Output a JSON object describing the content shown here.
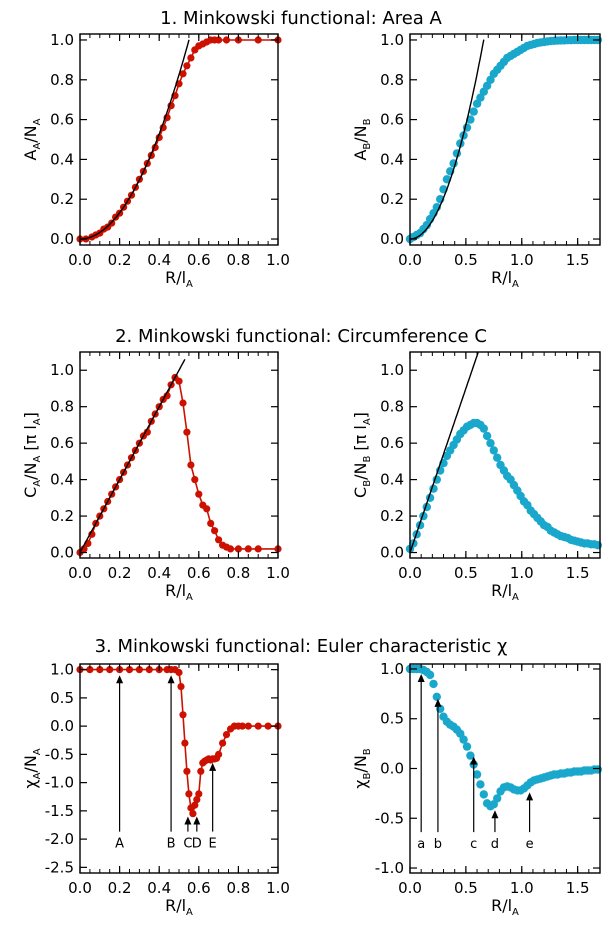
{
  "colors": {
    "red": "#cc1100",
    "cyan": "#1aa7cc",
    "axis": "#000000",
    "fit": "#000000"
  },
  "chart_data": [
    {
      "type": "scatter",
      "row": 0,
      "col": 0,
      "connected": true,
      "title": "1. Minkowski functional: Area A",
      "ylabel": {
        "main": "A",
        "sub1": "A",
        "mid": "/N",
        "sub2": "A",
        "suffix": ""
      },
      "xlabel": {
        "main": "R/l",
        "sub": "A"
      },
      "xlim": [
        0,
        1.0
      ],
      "ylim": [
        -0.03,
        1.03
      ],
      "xticks": [
        "0.0",
        "0.2",
        "0.4",
        "0.6",
        "0.8",
        "1.0"
      ],
      "yticks": [
        "0.0",
        "0.2",
        "0.4",
        "0.6",
        "0.8",
        "1.0"
      ],
      "color": "#cc1100",
      "fit_curve": {
        "kind": "quadratic",
        "coef": 3.3,
        "xmax": 0.56
      },
      "x": [
        0.0,
        0.03,
        0.06,
        0.08,
        0.1,
        0.12,
        0.14,
        0.16,
        0.18,
        0.2,
        0.22,
        0.24,
        0.26,
        0.28,
        0.3,
        0.32,
        0.34,
        0.36,
        0.38,
        0.4,
        0.42,
        0.44,
        0.46,
        0.48,
        0.5,
        0.52,
        0.54,
        0.56,
        0.58,
        0.6,
        0.62,
        0.64,
        0.66,
        0.68,
        0.7,
        0.74,
        0.8,
        0.9,
        1.0
      ],
      "y": [
        0.0,
        0.0,
        0.01,
        0.02,
        0.03,
        0.05,
        0.06,
        0.08,
        0.11,
        0.13,
        0.16,
        0.19,
        0.22,
        0.26,
        0.3,
        0.34,
        0.38,
        0.42,
        0.46,
        0.51,
        0.56,
        0.61,
        0.67,
        0.72,
        0.78,
        0.83,
        0.87,
        0.91,
        0.95,
        0.97,
        0.98,
        0.99,
        1.0,
        1.0,
        1.0,
        1.0,
        1.0,
        1.0,
        1.0
      ]
    },
    {
      "type": "scatter",
      "row": 0,
      "col": 1,
      "connected": false,
      "ylabel": {
        "main": "A",
        "sub1": "B",
        "mid": "/N",
        "sub2": "B",
        "suffix": ""
      },
      "xlabel": {
        "main": "R/l",
        "sub": "A"
      },
      "xlim": [
        0,
        1.7
      ],
      "ylim": [
        -0.03,
        1.03
      ],
      "xticks": [
        "0.0",
        "0.5",
        "1.0",
        "1.5"
      ],
      "xtick_values": [
        0,
        0.5,
        1.0,
        1.5
      ],
      "yticks": [
        "0.0",
        "0.2",
        "0.4",
        "0.6",
        "0.8",
        "1.0"
      ],
      "color": "#1aa7cc",
      "fit_curve": {
        "kind": "quadratic",
        "coef": 2.3,
        "xmax": 0.66
      },
      "x": [
        0.0,
        0.03,
        0.06,
        0.09,
        0.12,
        0.15,
        0.18,
        0.21,
        0.24,
        0.27,
        0.3,
        0.33,
        0.36,
        0.39,
        0.42,
        0.45,
        0.48,
        0.51,
        0.54,
        0.57,
        0.6,
        0.63,
        0.66,
        0.69,
        0.72,
        0.75,
        0.78,
        0.81,
        0.84,
        0.87,
        0.9,
        0.93,
        0.96,
        0.99,
        1.02,
        1.05,
        1.08,
        1.11,
        1.14,
        1.17,
        1.2,
        1.23,
        1.26,
        1.29,
        1.32,
        1.35,
        1.38,
        1.41,
        1.44,
        1.47,
        1.5,
        1.53,
        1.56,
        1.59,
        1.62,
        1.65,
        1.68
      ],
      "y": [
        0.0,
        0.01,
        0.02,
        0.03,
        0.05,
        0.07,
        0.1,
        0.13,
        0.16,
        0.2,
        0.25,
        0.3,
        0.34,
        0.38,
        0.43,
        0.48,
        0.52,
        0.56,
        0.6,
        0.64,
        0.68,
        0.71,
        0.74,
        0.77,
        0.8,
        0.83,
        0.85,
        0.87,
        0.89,
        0.91,
        0.92,
        0.93,
        0.94,
        0.95,
        0.96,
        0.97,
        0.975,
        0.98,
        0.985,
        0.988,
        0.99,
        0.993,
        0.995,
        0.996,
        0.997,
        0.998,
        0.998,
        0.999,
        0.999,
        1.0,
        1.0,
        1.0,
        1.0,
        1.0,
        1.0,
        1.0,
        1.0
      ]
    },
    {
      "type": "scatter",
      "row": 1,
      "col": 0,
      "connected": true,
      "title": "2. Minkowski functional: Circumference C",
      "ylabel": {
        "main": "C",
        "sub1": "A",
        "mid": "/N",
        "sub2": "A",
        "suffix": " [π l",
        "suffix_sub": "A",
        "suffix_end": "]"
      },
      "xlabel": {
        "main": "R/l",
        "sub": "A"
      },
      "xlim": [
        0,
        1.0
      ],
      "ylim": [
        -0.03,
        1.1
      ],
      "xticks": [
        "0.0",
        "0.2",
        "0.4",
        "0.6",
        "0.8",
        "1.0"
      ],
      "yticks": [
        "0.0",
        "0.2",
        "0.4",
        "0.6",
        "0.8",
        "1.0"
      ],
      "color": "#cc1100",
      "fit_curve": {
        "kind": "linear",
        "coef": 2.0,
        "xmax": 0.53
      },
      "x": [
        0.0,
        0.02,
        0.04,
        0.06,
        0.08,
        0.1,
        0.12,
        0.14,
        0.16,
        0.18,
        0.2,
        0.22,
        0.24,
        0.26,
        0.28,
        0.3,
        0.32,
        0.34,
        0.36,
        0.38,
        0.4,
        0.42,
        0.44,
        0.46,
        0.48,
        0.5,
        0.52,
        0.54,
        0.56,
        0.58,
        0.6,
        0.62,
        0.64,
        0.66,
        0.68,
        0.7,
        0.72,
        0.74,
        0.76,
        0.8,
        0.85,
        0.9,
        1.0
      ],
      "y": [
        0.0,
        0.02,
        0.05,
        0.1,
        0.16,
        0.2,
        0.24,
        0.28,
        0.32,
        0.36,
        0.4,
        0.44,
        0.48,
        0.52,
        0.56,
        0.6,
        0.64,
        0.66,
        0.72,
        0.76,
        0.8,
        0.84,
        0.86,
        0.92,
        0.96,
        0.94,
        0.82,
        0.66,
        0.48,
        0.4,
        0.32,
        0.26,
        0.24,
        0.16,
        0.12,
        0.07,
        0.04,
        0.03,
        0.02,
        0.02,
        0.02,
        0.02,
        0.02
      ]
    },
    {
      "type": "scatter",
      "row": 1,
      "col": 1,
      "connected": false,
      "ylabel": {
        "main": "C",
        "sub1": "B",
        "mid": "/N",
        "sub2": "B",
        "suffix": " [π l",
        "suffix_sub": "A",
        "suffix_end": "]"
      },
      "xlabel": {
        "main": "R/l",
        "sub": "A"
      },
      "xlim": [
        0,
        1.7
      ],
      "ylim": [
        -0.03,
        1.1
      ],
      "xticks": [
        "0.0",
        "0.5",
        "1.0",
        "1.5"
      ],
      "xtick_values": [
        0,
        0.5,
        1.0,
        1.5
      ],
      "yticks": [
        "0.0",
        "0.2",
        "0.4",
        "0.6",
        "0.8",
        "1.0"
      ],
      "color": "#1aa7cc",
      "fit_curve": {
        "kind": "linear",
        "coef": 1.8,
        "xmax": 0.62
      },
      "x": [
        0.0,
        0.03,
        0.06,
        0.09,
        0.12,
        0.15,
        0.18,
        0.21,
        0.24,
        0.27,
        0.3,
        0.33,
        0.36,
        0.39,
        0.42,
        0.45,
        0.48,
        0.51,
        0.54,
        0.57,
        0.6,
        0.63,
        0.66,
        0.69,
        0.72,
        0.75,
        0.78,
        0.81,
        0.84,
        0.87,
        0.9,
        0.93,
        0.96,
        0.99,
        1.02,
        1.05,
        1.08,
        1.11,
        1.14,
        1.17,
        1.2,
        1.23,
        1.26,
        1.29,
        1.32,
        1.35,
        1.38,
        1.41,
        1.44,
        1.47,
        1.5,
        1.53,
        1.56,
        1.59,
        1.62,
        1.65,
        1.68
      ],
      "y": [
        0.02,
        0.05,
        0.1,
        0.15,
        0.2,
        0.25,
        0.3,
        0.35,
        0.4,
        0.45,
        0.49,
        0.53,
        0.56,
        0.59,
        0.62,
        0.65,
        0.67,
        0.69,
        0.7,
        0.71,
        0.71,
        0.7,
        0.68,
        0.64,
        0.6,
        0.56,
        0.52,
        0.48,
        0.45,
        0.42,
        0.4,
        0.37,
        0.34,
        0.31,
        0.28,
        0.26,
        0.23,
        0.21,
        0.19,
        0.17,
        0.15,
        0.14,
        0.12,
        0.11,
        0.1,
        0.09,
        0.085,
        0.08,
        0.07,
        0.065,
        0.06,
        0.055,
        0.05,
        0.05,
        0.045,
        0.045,
        0.04
      ]
    },
    {
      "type": "scatter",
      "row": 2,
      "col": 0,
      "connected": true,
      "title": "3. Minkowski functional: Euler characteristic χ",
      "ylabel": {
        "main": "χ",
        "sub1": "A",
        "mid": "/N",
        "sub2": "A",
        "suffix": ""
      },
      "xlabel": {
        "main": "R/l",
        "sub": "A"
      },
      "xlim": [
        0,
        1.0
      ],
      "ylim": [
        -2.6,
        1.1
      ],
      "xticks": [
        "0.0",
        "0.2",
        "0.4",
        "0.6",
        "0.8",
        "1.0"
      ],
      "yticks": [
        "1.0",
        "0.5",
        "0.0",
        "-0.5",
        "-1.0",
        "-1.5",
        "-2.0",
        "-2.5"
      ],
      "ytick_values": [
        1.0,
        0.5,
        0.0,
        -0.5,
        -1.0,
        -1.5,
        -2.0,
        -2.5
      ],
      "color": "#cc1100",
      "fit_curve": null,
      "x": [
        0.0,
        0.05,
        0.1,
        0.15,
        0.2,
        0.25,
        0.3,
        0.35,
        0.4,
        0.44,
        0.46,
        0.48,
        0.5,
        0.51,
        0.52,
        0.53,
        0.54,
        0.55,
        0.56,
        0.57,
        0.58,
        0.59,
        0.6,
        0.61,
        0.62,
        0.63,
        0.64,
        0.65,
        0.66,
        0.67,
        0.68,
        0.69,
        0.7,
        0.72,
        0.74,
        0.76,
        0.78,
        0.8,
        0.82,
        0.85,
        0.9,
        0.95,
        1.0
      ],
      "y": [
        1.0,
        1.0,
        1.0,
        1.0,
        1.0,
        1.0,
        1.0,
        1.0,
        1.0,
        1.0,
        1.0,
        1.0,
        0.95,
        0.7,
        0.2,
        -0.3,
        -0.8,
        -1.2,
        -1.45,
        -1.55,
        -1.4,
        -1.3,
        -1.2,
        -0.8,
        -0.65,
        -0.62,
        -0.6,
        -0.58,
        -0.6,
        -0.58,
        -0.58,
        -0.57,
        -0.5,
        -0.3,
        -0.15,
        -0.05,
        0.0,
        0.0,
        0.0,
        0.0,
        0.0,
        0.0,
        0.0
      ],
      "annotations": [
        {
          "label": "A",
          "x": 0.2,
          "y_text": -2.15,
          "y_tip": 0.9
        },
        {
          "label": "B",
          "x": 0.46,
          "y_text": -2.15,
          "y_tip": 0.9
        },
        {
          "label": "C",
          "x": 0.545,
          "y_text": -2.15,
          "y_tip": -1.6
        },
        {
          "label": "D",
          "x": 0.59,
          "y_text": -2.15,
          "y_tip": -1.6
        },
        {
          "label": "E",
          "x": 0.67,
          "y_text": -2.15,
          "y_tip": -0.65
        }
      ]
    },
    {
      "type": "scatter",
      "row": 2,
      "col": 1,
      "connected": false,
      "ylabel": {
        "main": "χ",
        "sub1": "B",
        "mid": "/N",
        "sub2": "B",
        "suffix": ""
      },
      "xlabel": {
        "main": "R/l",
        "sub": "A"
      },
      "xlim": [
        0,
        1.7
      ],
      "ylim": [
        -1.05,
        1.05
      ],
      "xticks": [
        "0.0",
        "0.5",
        "1.0",
        "1.5"
      ],
      "xtick_values": [
        0,
        0.5,
        1.0,
        1.5
      ],
      "yticks": [
        "1.0",
        "0.5",
        "0.0",
        "-0.5",
        "-1.0"
      ],
      "ytick_values": [
        1.0,
        0.5,
        0.0,
        -0.5,
        -1.0
      ],
      "color": "#1aa7cc",
      "fit_curve": null,
      "x": [
        0.0,
        0.03,
        0.06,
        0.09,
        0.12,
        0.15,
        0.18,
        0.21,
        0.24,
        0.27,
        0.3,
        0.33,
        0.36,
        0.39,
        0.42,
        0.45,
        0.48,
        0.51,
        0.54,
        0.57,
        0.6,
        0.63,
        0.66,
        0.69,
        0.72,
        0.75,
        0.78,
        0.81,
        0.84,
        0.87,
        0.9,
        0.93,
        0.96,
        0.99,
        1.02,
        1.05,
        1.08,
        1.11,
        1.14,
        1.17,
        1.2,
        1.23,
        1.26,
        1.29,
        1.32,
        1.35,
        1.38,
        1.41,
        1.44,
        1.47,
        1.5,
        1.53,
        1.56,
        1.59,
        1.62,
        1.65,
        1.68
      ],
      "y": [
        1.0,
        1.0,
        1.0,
        1.0,
        0.99,
        0.97,
        0.94,
        0.85,
        0.72,
        0.6,
        0.52,
        0.47,
        0.44,
        0.42,
        0.39,
        0.35,
        0.29,
        0.22,
        0.13,
        0.04,
        -0.06,
        -0.16,
        -0.26,
        -0.35,
        -0.38,
        -0.36,
        -0.3,
        -0.23,
        -0.19,
        -0.18,
        -0.19,
        -0.21,
        -0.22,
        -0.22,
        -0.2,
        -0.17,
        -0.14,
        -0.12,
        -0.11,
        -0.1,
        -0.09,
        -0.08,
        -0.07,
        -0.06,
        -0.06,
        -0.05,
        -0.05,
        -0.04,
        -0.04,
        -0.03,
        -0.03,
        -0.03,
        -0.02,
        -0.02,
        -0.02,
        -0.01,
        -0.01
      ],
      "annotations": [
        {
          "label": "a",
          "x": 0.1,
          "y_text": -0.8,
          "y_tip": 0.95
        },
        {
          "label": "b",
          "x": 0.25,
          "y_text": -0.8,
          "y_tip": 0.7
        },
        {
          "label": "c",
          "x": 0.57,
          "y_text": -0.8,
          "y_tip": 0.12
        },
        {
          "label": "d",
          "x": 0.76,
          "y_text": -0.8,
          "y_tip": -0.42
        },
        {
          "label": "e",
          "x": 1.07,
          "y_text": -0.8,
          "y_tip": -0.24
        }
      ]
    }
  ]
}
